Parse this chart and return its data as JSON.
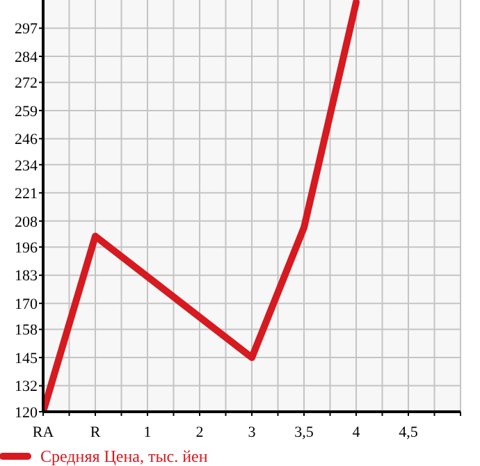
{
  "chart_data": {
    "type": "line",
    "categories": [
      "RA",
      "R",
      "1",
      "2",
      "3",
      "3,5",
      "4",
      "4,5"
    ],
    "series": [
      {
        "name": "Средняя Цена, тыс. йен",
        "color": "#d71920",
        "values": [
          120,
          201,
          null,
          null,
          145,
          205,
          309,
          null
        ]
      }
    ],
    "ylim": [
      120,
      310
    ],
    "yticks": [
      120,
      132,
      145,
      158,
      170,
      183,
      196,
      208,
      221,
      234,
      246,
      259,
      272,
      284,
      297
    ],
    "grid": true,
    "legend": "bottom",
    "marker": "none"
  }
}
